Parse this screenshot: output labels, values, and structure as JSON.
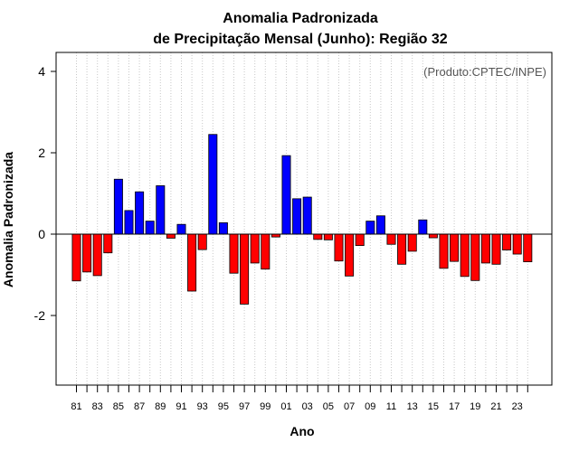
{
  "chart_data": {
    "type": "bar",
    "title": [
      "Anomalia Padronizada",
      "de Precipitação Mensal (Junho): Região 32"
    ],
    "xlabel": "Ano",
    "ylabel": "Anomalia Padronizada",
    "source_note": "(Produto:CPTEC/INPE)",
    "ylim": [
      -3.75,
      4.5
    ],
    "yticks": [
      -2,
      0,
      2,
      4
    ],
    "xtick_labels": [
      "81",
      "83",
      "85",
      "87",
      "89",
      "91",
      "93",
      "95",
      "97",
      "99",
      "01",
      "03",
      "05",
      "07",
      "09",
      "11",
      "13",
      "15",
      "17",
      "19",
      "21",
      "23"
    ],
    "categories": [
      "81",
      "82",
      "83",
      "84",
      "85",
      "86",
      "87",
      "88",
      "89",
      "90",
      "91",
      "92",
      "93",
      "94",
      "95",
      "96",
      "97",
      "98",
      "99",
      "00",
      "01",
      "02",
      "03",
      "04",
      "05",
      "06",
      "07",
      "08",
      "09",
      "10",
      "11",
      "12",
      "13",
      "14",
      "15",
      "16",
      "17",
      "18",
      "19",
      "20",
      "21",
      "22",
      "23",
      "24"
    ],
    "values": [
      -1.15,
      -0.93,
      -1.02,
      -0.46,
      1.35,
      0.58,
      1.04,
      0.32,
      1.19,
      -0.1,
      0.24,
      -1.4,
      -0.38,
      2.45,
      0.28,
      -0.96,
      -1.72,
      -0.71,
      -0.86,
      -0.07,
      1.93,
      0.87,
      0.91,
      -0.13,
      -0.14,
      -0.66,
      -1.03,
      -0.28,
      0.32,
      0.45,
      -0.25,
      -0.74,
      -0.42,
      0.35,
      -0.09,
      -0.84,
      -0.67,
      -1.04,
      -1.14,
      -0.71,
      -0.74,
      -0.39,
      -0.49,
      -0.68
    ],
    "colors": {
      "positive": "#0000ff",
      "negative": "#ff0000"
    },
    "grid": "vertical dotted",
    "legend": "none"
  }
}
